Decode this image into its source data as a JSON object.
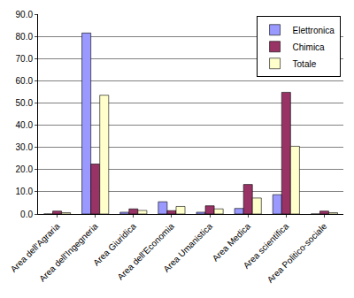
{
  "chart_data": {
    "type": "bar",
    "categories": [
      "Area dell'Agraria",
      "Area dell'Ingegneria",
      "Area Giuridica",
      "Area dell'Economia",
      "Area Umanistica",
      "Area Medica",
      "Area scientifica",
      "Area Politico-sociale"
    ],
    "series": [
      {
        "name": "Elettronica",
        "color": "#9999ff",
        "values": [
          0,
          81.5,
          0.8,
          5.5,
          0.8,
          2.5,
          8.7,
          0
        ]
      },
      {
        "name": "Chimica",
        "color": "#993366",
        "values": [
          1.3,
          22.5,
          2.3,
          1.5,
          3.7,
          13.3,
          54.8,
          1.3
        ]
      },
      {
        "name": "Totale",
        "color": "#ffffcc",
        "values": [
          0.6,
          53.5,
          1.6,
          3.4,
          2.3,
          7.2,
          30.5,
          0.6
        ]
      }
    ],
    "ylim": [
      0,
      90
    ],
    "yticks": [
      {
        "value": 0,
        "label": "0.0"
      },
      {
        "value": 10,
        "label": "10.0"
      },
      {
        "value": 20,
        "label": "20.0"
      },
      {
        "value": 30,
        "label": "30.0"
      },
      {
        "value": 40,
        "label": "40.0"
      },
      {
        "value": 50,
        "label": "50.0"
      },
      {
        "value": 60,
        "label": "60.0"
      },
      {
        "value": 70,
        "label": "70.0"
      },
      {
        "value": 80,
        "label": "80.0"
      },
      {
        "value": 90,
        "label": "90.0"
      }
    ],
    "grid": true,
    "legend": "top-right"
  }
}
